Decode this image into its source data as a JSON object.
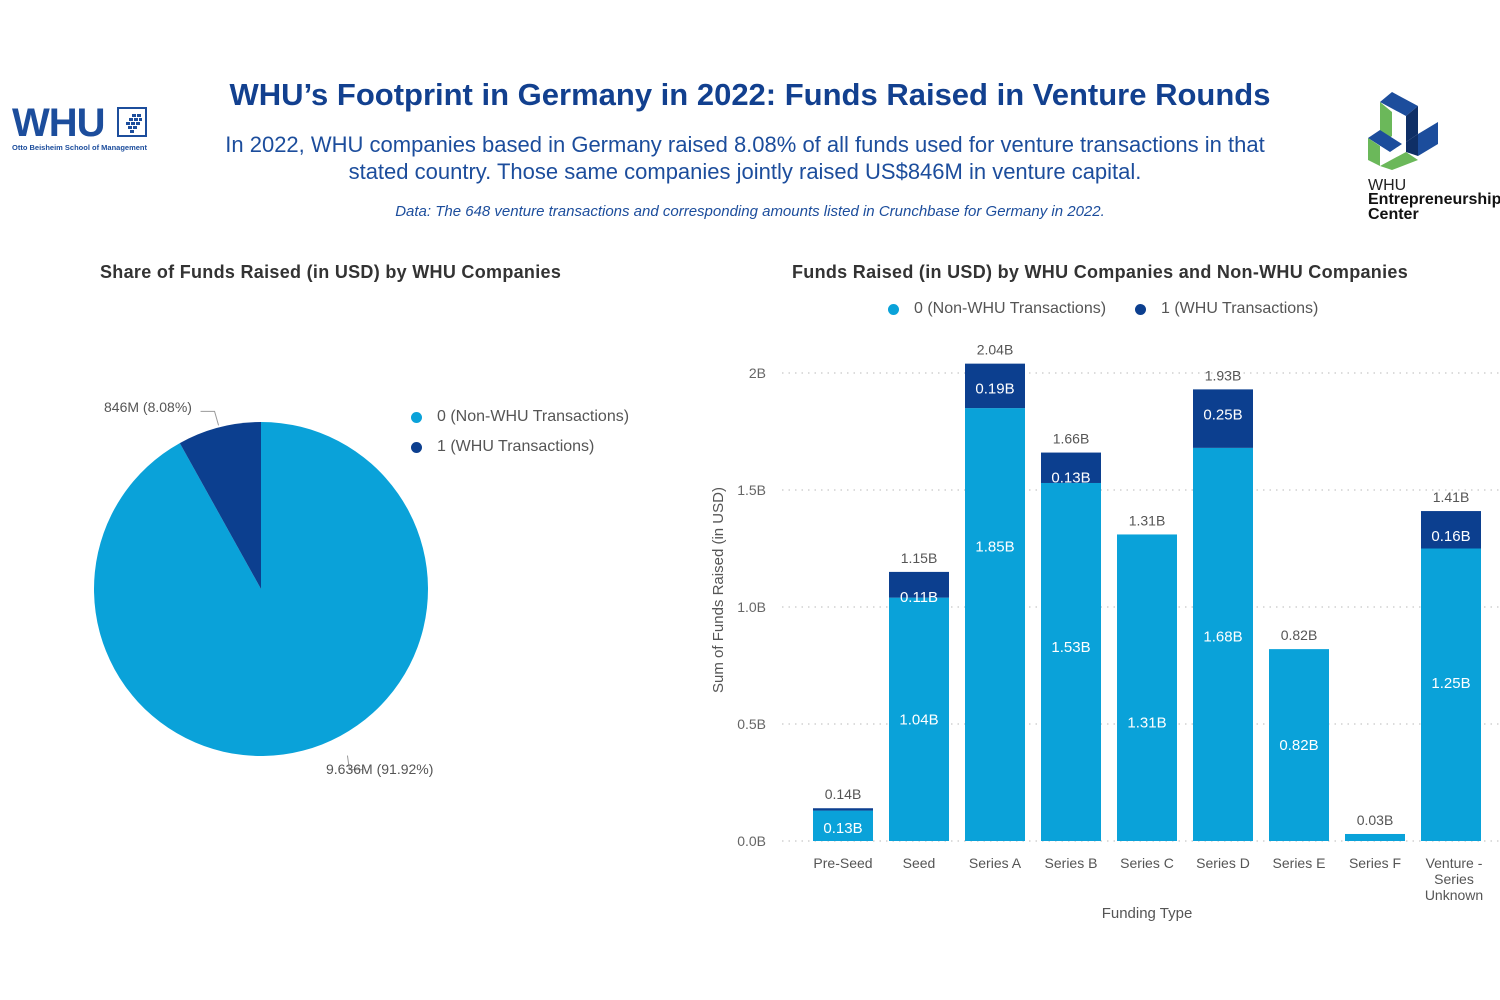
{
  "header": {
    "title": "WHU’s Footprint in Germany in 2022: Funds Raised in Venture Rounds",
    "subtitle_line1": "In 2022, WHU companies based in Germany raised 8.08% of all funds used for venture transactions in that",
    "subtitle_line2": "stated country. Those same companies jointly raised US$846M in venture capital.",
    "data_note": "Data: The 648 venture transactions and corresponding amounts listed in Crunchbase for Germany in 2022."
  },
  "logos": {
    "whu": {
      "word": "WHU",
      "sub": "Otto Beisheim School of Management",
      "icon": "whu-emblem-icon"
    },
    "entrepreneurship_center": {
      "line1": "WHU",
      "line2": "Entrepreneurship",
      "line3": "Center",
      "icon": "triangle-cube-icon"
    }
  },
  "colors": {
    "non_whu": "#0aa2d9",
    "whu": "#0c3f8f",
    "title_blue": "#12408f",
    "gridline": "#c8c8c8",
    "axis_text": "#666666"
  },
  "chart_data": [
    {
      "type": "pie",
      "title": "Share of Funds Raised (in USD) by WHU Companies",
      "legend_position": "right",
      "legend": [
        "0 (Non-WHU Transactions)",
        "1 (WHU Transactions)"
      ],
      "slices": [
        {
          "name": "0 (Non-WHU Transactions)",
          "value_label": "9.636M",
          "percent": 91.92,
          "label": "9.636M (91.92%)"
        },
        {
          "name": "1 (WHU Transactions)",
          "value_label": "846M",
          "percent": 8.08,
          "label": "846M (8.08%)"
        }
      ]
    },
    {
      "type": "bar",
      "stacked": true,
      "title": "Funds Raised (in USD) by WHU Companies and Non-WHU Companies",
      "legend_position": "top",
      "legend": [
        "0 (Non-WHU Transactions)",
        "1 (WHU Transactions)"
      ],
      "xlabel": "Funding Type",
      "ylabel": "Sum of Funds Raised (in USD)",
      "ylim": [
        0,
        2.1
      ],
      "yticks": [
        {
          "value": 0,
          "label": "0.0B"
        },
        {
          "value": 0.5,
          "label": "0.5B"
        },
        {
          "value": 1.0,
          "label": "1.0B"
        },
        {
          "value": 1.5,
          "label": "1.5B"
        },
        {
          "value": 2.0,
          "label": "2B"
        }
      ],
      "grid": true,
      "categories": [
        [
          "Pre-Seed"
        ],
        [
          "Seed"
        ],
        [
          "Series  A"
        ],
        [
          "Series B"
        ],
        [
          "Series C"
        ],
        [
          "Series D"
        ],
        [
          "Series E"
        ],
        [
          "Series F"
        ],
        [
          "Venture -",
          "Series",
          "Unknown"
        ]
      ],
      "series": [
        {
          "name": "0 (Non-WHU Transactions)",
          "values": [
            0.13,
            1.04,
            1.85,
            1.53,
            1.31,
            1.68,
            0.82,
            0.03,
            1.25
          ],
          "labels": [
            "0.13B",
            "1.04B",
            "1.85B",
            "1.53B",
            "1.31B",
            "1.68B",
            "0.82B",
            "",
            "1.25B"
          ]
        },
        {
          "name": "1 (WHU Transactions)",
          "values": [
            0.01,
            0.11,
            0.19,
            0.13,
            0,
            0.25,
            0,
            0,
            0.16
          ],
          "labels": [
            "",
            "0.11B",
            "0.19B",
            "0.13B",
            "",
            "0.25B",
            "",
            "",
            "0.16B"
          ]
        }
      ],
      "totals": [
        0.14,
        1.15,
        2.04,
        1.66,
        1.31,
        1.93,
        0.82,
        0.03,
        1.41
      ],
      "total_labels": [
        "0.14B",
        "1.15B",
        "2.04B",
        "1.66B",
        "1.31B",
        "1.93B",
        "0.82B",
        "0.03B",
        "1.41B"
      ]
    }
  ]
}
